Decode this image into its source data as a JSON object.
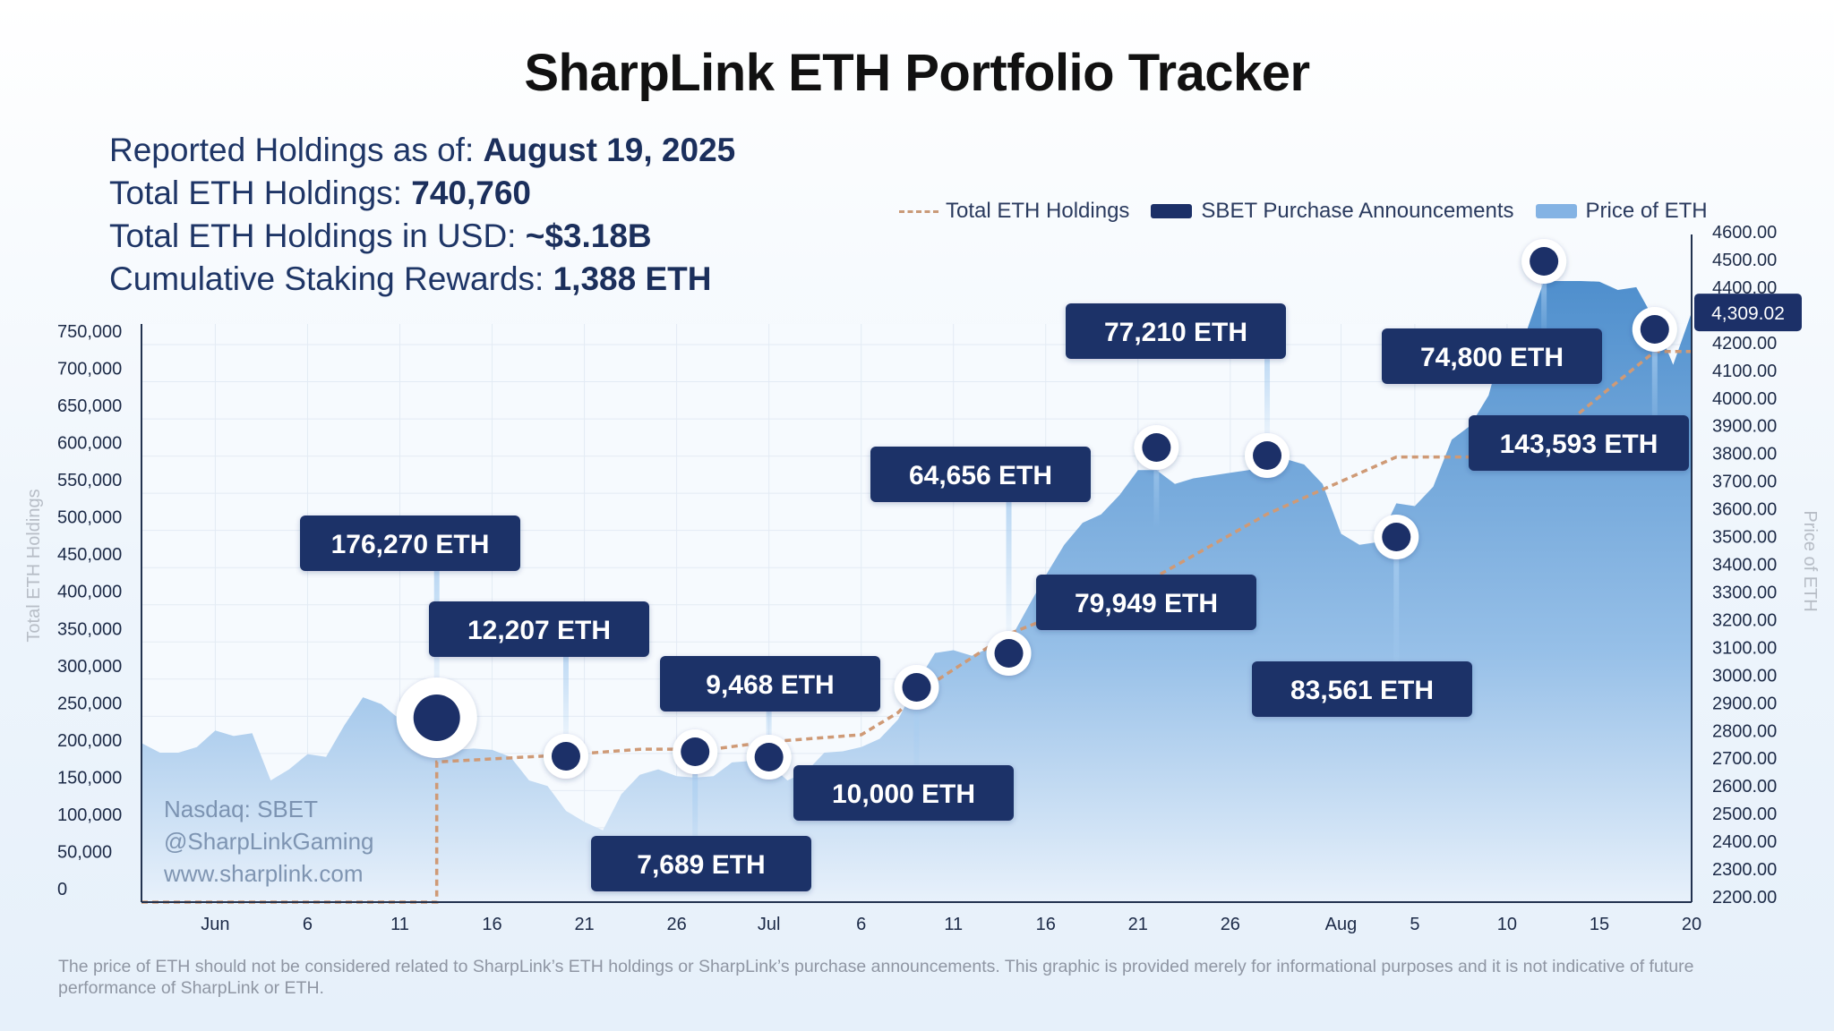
{
  "title": "SharpLink ETH Portfolio Tracker",
  "stats": [
    {
      "label": "Reported Holdings as of: ",
      "value": "August 19, 2025"
    },
    {
      "label": "Total ETH Holdings: ",
      "value": "740,760"
    },
    {
      "label": "Total ETH Holdings in USD: ",
      "value": "~$3.18B"
    },
    {
      "label": "Cumulative Staking Rewards: ",
      "value": "1,388 ETH"
    }
  ],
  "legend": {
    "holdings": "Total ETH Holdings",
    "purchases": "SBET Purchase Announcements",
    "price": "Price of ETH"
  },
  "watermark": [
    "Nasdaq: SBET",
    "@SharpLinkGaming",
    "www.sharplink.com"
  ],
  "footer": "The price of ETH should not be considered related to SharpLink’s ETH holdings or SharpLink’s purchase announcements. This graphic is provided merely for informational purposes and it is not indicative of future performance of SharpLink or ETH.",
  "colors": {
    "navy": "#1c3068",
    "price_fill_top": "#4f8fcd",
    "price_fill_bottom": "#e8f1fb",
    "holdings_line": "#cf9a76"
  },
  "chart_data": {
    "type": "area",
    "x_range": [
      "2025-05-28",
      "2025-08-20"
    ],
    "x_ticks": [
      {
        "date": "2025-06-01",
        "label": "Jun"
      },
      {
        "date": "2025-06-06",
        "label": "6"
      },
      {
        "date": "2025-06-11",
        "label": "11"
      },
      {
        "date": "2025-06-16",
        "label": "16"
      },
      {
        "date": "2025-06-21",
        "label": "21"
      },
      {
        "date": "2025-06-26",
        "label": "26"
      },
      {
        "date": "2025-07-01",
        "label": "Jul"
      },
      {
        "date": "2025-07-06",
        "label": "6"
      },
      {
        "date": "2025-07-11",
        "label": "11"
      },
      {
        "date": "2025-07-16",
        "label": "16"
      },
      {
        "date": "2025-07-21",
        "label": "21"
      },
      {
        "date": "2025-07-26",
        "label": "26"
      },
      {
        "date": "2025-08-01",
        "label": "Aug"
      },
      {
        "date": "2025-08-05",
        "label": "5"
      },
      {
        "date": "2025-08-10",
        "label": "10"
      },
      {
        "date": "2025-08-15",
        "label": "15"
      },
      {
        "date": "2025-08-20",
        "label": "20"
      }
    ],
    "y_left": {
      "label": "Total ETH Holdings",
      "min": 0,
      "max": 750000,
      "ticks": [
        {
          "value": 0,
          "label": "0"
        },
        {
          "value": 50000,
          "label": "50,000"
        },
        {
          "value": 100000,
          "label": "100,000"
        },
        {
          "value": 150000,
          "label": "150,000"
        },
        {
          "value": 200000,
          "label": "200,000"
        },
        {
          "value": 250000,
          "label": "250,000"
        },
        {
          "value": 300000,
          "label": "300,000"
        },
        {
          "value": 350000,
          "label": "350,000"
        },
        {
          "value": 400000,
          "label": "400,000"
        },
        {
          "value": 450000,
          "label": "450,000"
        },
        {
          "value": 500000,
          "label": "500,000"
        },
        {
          "value": 550000,
          "label": "550,000"
        },
        {
          "value": 600000,
          "label": "600,000"
        },
        {
          "value": 650000,
          "label": "650,000"
        },
        {
          "value": 700000,
          "label": "700,000"
        },
        {
          "value": 750000,
          "label": "750,000"
        }
      ]
    },
    "y_right": {
      "label": "Price of ETH",
      "min": 2200,
      "max": 4600,
      "ticks": [
        {
          "value": 2200,
          "label": "2200.00"
        },
        {
          "value": 2300,
          "label": "2300.00"
        },
        {
          "value": 2400,
          "label": "2400.00"
        },
        {
          "value": 2500,
          "label": "2500.00"
        },
        {
          "value": 2600,
          "label": "2600.00"
        },
        {
          "value": 2700,
          "label": "2700.00"
        },
        {
          "value": 2800,
          "label": "2800.00"
        },
        {
          "value": 2900,
          "label": "2900.00"
        },
        {
          "value": 3000,
          "label": "3000.00"
        },
        {
          "value": 3100,
          "label": "3100.00"
        },
        {
          "value": 3200,
          "label": "3200.00"
        },
        {
          "value": 3300,
          "label": "3300.00"
        },
        {
          "value": 3400,
          "label": "3400.00"
        },
        {
          "value": 3500,
          "label": "3500.00"
        },
        {
          "value": 3600,
          "label": "3600.00"
        },
        {
          "value": 3700,
          "label": "3700.00"
        },
        {
          "value": 3800,
          "label": "3800.00"
        },
        {
          "value": 3900,
          "label": "3900.00"
        },
        {
          "value": 4000,
          "label": "4000.00"
        },
        {
          "value": 4100,
          "label": "4100.00"
        },
        {
          "value": 4200,
          "label": "4200.00"
        },
        {
          "value": 4300,
          "label": "4300.00"
        },
        {
          "value": 4400,
          "label": "4400.00"
        },
        {
          "value": 4500,
          "label": "4500.00"
        },
        {
          "value": 4600,
          "label": "4600.00"
        }
      ]
    },
    "current_price": {
      "value": 4309.02,
      "label": "4,309.02"
    },
    "series": [
      {
        "name": "Price of ETH",
        "kind": "area",
        "axis": "right",
        "points": [
          [
            "2025-05-28",
            2755
          ],
          [
            "2025-05-29",
            2720
          ],
          [
            "2025-05-30",
            2720
          ],
          [
            "2025-05-31",
            2740
          ],
          [
            "2025-06-01",
            2800
          ],
          [
            "2025-06-02",
            2780
          ],
          [
            "2025-06-03",
            2790
          ],
          [
            "2025-06-04",
            2620
          ],
          [
            "2025-06-05",
            2660
          ],
          [
            "2025-06-06",
            2715
          ],
          [
            "2025-06-07",
            2705
          ],
          [
            "2025-06-08",
            2820
          ],
          [
            "2025-06-09",
            2920
          ],
          [
            "2025-06-10",
            2895
          ],
          [
            "2025-06-11",
            2840
          ],
          [
            "2025-06-12",
            2740
          ],
          [
            "2025-06-13",
            2710
          ],
          [
            "2025-06-14",
            2730
          ],
          [
            "2025-06-15",
            2735
          ],
          [
            "2025-06-16",
            2730
          ],
          [
            "2025-06-17",
            2705
          ],
          [
            "2025-06-18",
            2620
          ],
          [
            "2025-06-19",
            2600
          ],
          [
            "2025-06-20",
            2510
          ],
          [
            "2025-06-21",
            2470
          ],
          [
            "2025-06-22",
            2440
          ],
          [
            "2025-06-23",
            2570
          ],
          [
            "2025-06-24",
            2640
          ],
          [
            "2025-06-25",
            2660
          ],
          [
            "2025-06-26",
            2635
          ],
          [
            "2025-06-27",
            2630
          ],
          [
            "2025-06-28",
            2635
          ],
          [
            "2025-06-29",
            2685
          ],
          [
            "2025-06-30",
            2690
          ],
          [
            "2025-07-01",
            2680
          ],
          [
            "2025-07-02",
            2620
          ],
          [
            "2025-07-03",
            2650
          ],
          [
            "2025-07-04",
            2720
          ],
          [
            "2025-07-05",
            2725
          ],
          [
            "2025-07-06",
            2740
          ],
          [
            "2025-07-07",
            2770
          ],
          [
            "2025-07-08",
            2840
          ],
          [
            "2025-07-09",
            2970
          ],
          [
            "2025-07-10",
            3080
          ],
          [
            "2025-07-11",
            3090
          ],
          [
            "2025-07-12",
            3070
          ],
          [
            "2025-07-13",
            3100
          ],
          [
            "2025-07-14",
            3120
          ],
          [
            "2025-07-15",
            3240
          ],
          [
            "2025-07-16",
            3360
          ],
          [
            "2025-07-17",
            3470
          ],
          [
            "2025-07-18",
            3550
          ],
          [
            "2025-07-19",
            3580
          ],
          [
            "2025-07-20",
            3650
          ],
          [
            "2025-07-21",
            3740
          ],
          [
            "2025-07-22",
            3740
          ],
          [
            "2025-07-23",
            3690
          ],
          [
            "2025-07-24",
            3710
          ],
          [
            "2025-07-25",
            3720
          ],
          [
            "2025-07-26",
            3730
          ],
          [
            "2025-07-27",
            3740
          ],
          [
            "2025-07-28",
            3760
          ],
          [
            "2025-07-29",
            3780
          ],
          [
            "2025-07-30",
            3760
          ],
          [
            "2025-07-31",
            3690
          ],
          [
            "2025-08-01",
            3510
          ],
          [
            "2025-08-02",
            3470
          ],
          [
            "2025-08-03",
            3480
          ],
          [
            "2025-08-04",
            3620
          ],
          [
            "2025-08-05",
            3610
          ],
          [
            "2025-08-06",
            3680
          ],
          [
            "2025-08-07",
            3850
          ],
          [
            "2025-08-08",
            3900
          ],
          [
            "2025-08-09",
            4010
          ],
          [
            "2025-08-10",
            4250
          ],
          [
            "2025-08-11",
            4230
          ],
          [
            "2025-08-12",
            4500
          ],
          [
            "2025-08-13",
            4730
          ],
          [
            "2025-08-14",
            4610
          ],
          [
            "2025-08-15",
            4420
          ],
          [
            "2025-08-16",
            4390
          ],
          [
            "2025-08-17",
            4400
          ],
          [
            "2025-08-18",
            4280
          ],
          [
            "2025-08-19",
            4120
          ],
          [
            "2025-08-20",
            4309
          ]
        ]
      },
      {
        "name": "Total ETH Holdings",
        "kind": "step-dashed-line",
        "axis": "left",
        "points": [
          [
            "2025-05-28",
            0
          ],
          [
            "2025-06-13",
            0
          ],
          [
            "2025-06-13",
            188478
          ],
          [
            "2025-06-20",
            198167
          ],
          [
            "2025-06-24",
            205634
          ],
          [
            "2025-06-28",
            206000
          ],
          [
            "2025-07-01",
            215634
          ],
          [
            "2025-07-06",
            225102
          ],
          [
            "2025-07-08",
            255000
          ],
          [
            "2025-07-09",
            280706
          ],
          [
            "2025-07-14",
            360807
          ],
          [
            "2025-07-22",
            438190
          ],
          [
            "2025-07-28",
            521939
          ],
          [
            "2025-08-04",
            598800
          ],
          [
            "2025-08-11",
            598800
          ],
          [
            "2025-08-18",
            740760
          ],
          [
            "2025-08-20",
            740760
          ]
        ]
      }
    ],
    "purchase_announcements": [
      {
        "date": "2025-06-13",
        "label": "176,270 ETH",
        "large": true
      },
      {
        "date": "2025-06-20",
        "label": "12,207 ETH"
      },
      {
        "date": "2025-06-27",
        "label": "7,689 ETH"
      },
      {
        "date": "2025-07-01",
        "label": "9,468 ETH"
      },
      {
        "date": "2025-07-09",
        "label": "10,000 ETH"
      },
      {
        "date": "2025-07-14",
        "label": "64,656 ETH"
      },
      {
        "date": "2025-07-22",
        "label": "79,949 ETH"
      },
      {
        "date": "2025-07-28",
        "label": "77,210 ETH"
      },
      {
        "date": "2025-08-04",
        "label": "83,561 ETH"
      },
      {
        "date": "2025-08-12",
        "label": "74,800 ETH"
      },
      {
        "date": "2025-08-18",
        "label": "143,593 ETH"
      }
    ]
  }
}
